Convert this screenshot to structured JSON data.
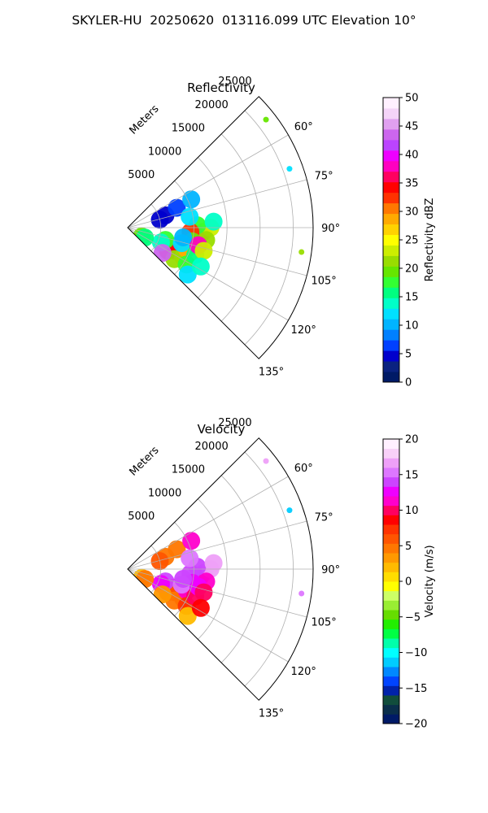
{
  "title": "SKYLER-HU  20250620  013116.099 UTC Elevation 10°",
  "chart_data": [
    {
      "type": "heatmap",
      "title": "Reflectivity",
      "projection": "polar-sector",
      "radial_label": "Meters",
      "radial_ticks": [
        5000,
        10000,
        15000,
        20000,
        25000
      ],
      "radial_tick_labels": [
        "5000",
        "10000",
        "15000",
        "20000",
        "25000"
      ],
      "rlim": [
        0,
        28000
      ],
      "azimuth_range_deg": [
        45,
        135
      ],
      "azimuth_ticks": [
        "60°",
        "75°",
        "90°",
        "105°",
        "120°",
        "135°"
      ],
      "grid": true,
      "colorbar": {
        "label": "Reflectivity dBZ",
        "range": [
          0,
          50
        ],
        "ticks": [
          "0",
          "5",
          "10",
          "15",
          "20",
          "25",
          "30",
          "35",
          "40",
          "45",
          "50"
        ],
        "levels": [
          "#001a66",
          "#0a2280",
          "#0000cc",
          "#0040ff",
          "#0080ff",
          "#00b4ff",
          "#00e0ff",
          "#00ffc8",
          "#00ff80",
          "#33ff33",
          "#66e600",
          "#99dd00",
          "#ccee00",
          "#ffff00",
          "#ffd200",
          "#ffaa00",
          "#ff7800",
          "#ff3200",
          "#ff0000",
          "#ff0060",
          "#ff00c0",
          "#ee00ff",
          "#bb44ff",
          "#cc66ee",
          "#e0a0f0",
          "#f4d4f8",
          "#fff0ff"
        ]
      },
      "cells": [
        {
          "az": 93,
          "r": 11500,
          "v": 28
        },
        {
          "az": 96,
          "r": 11000,
          "v": 38
        },
        {
          "az": 90,
          "r": 12500,
          "v": 24
        },
        {
          "az": 99,
          "r": 12000,
          "v": 22
        },
        {
          "az": 88,
          "r": 10500,
          "v": 18
        },
        {
          "az": 94,
          "r": 9500,
          "v": 32
        },
        {
          "az": 102,
          "r": 10000,
          "v": 20
        },
        {
          "az": 86,
          "r": 13000,
          "v": 14
        },
        {
          "az": 112,
          "r": 7500,
          "v": 30
        },
        {
          "az": 116,
          "r": 8000,
          "v": 38
        },
        {
          "az": 120,
          "r": 7000,
          "v": 34
        },
        {
          "az": 118,
          "r": 9500,
          "v": 26
        },
        {
          "az": 124,
          "r": 8500,
          "v": 22
        },
        {
          "az": 110,
          "r": 9500,
          "v": 28
        },
        {
          "az": 108,
          "r": 6000,
          "v": 18
        },
        {
          "az": 114,
          "r": 5500,
          "v": 14
        },
        {
          "az": 122,
          "r": 10500,
          "v": 18
        },
        {
          "az": 126,
          "r": 6500,
          "v": 44
        },
        {
          "az": 106,
          "r": 8500,
          "v": 12
        },
        {
          "az": 112,
          "r": 11000,
          "v": 16
        },
        {
          "az": 128,
          "r": 11500,
          "v": 12
        },
        {
          "az": 104,
          "r": 11000,
          "v": 38
        },
        {
          "az": 107,
          "r": 12000,
          "v": 24
        },
        {
          "az": 100,
          "r": 8500,
          "v": 10
        },
        {
          "az": 118,
          "r": 12500,
          "v": 14
        },
        {
          "az": 72,
          "r": 6000,
          "v": 4
        },
        {
          "az": 68,
          "r": 8000,
          "v": 6
        },
        {
          "az": 76,
          "r": 5000,
          "v": 5
        },
        {
          "az": 80,
          "r": 9500,
          "v": 12
        },
        {
          "az": 66,
          "r": 10500,
          "v": 10
        },
        {
          "az": 122,
          "r": 2500,
          "v": 20
        },
        {
          "az": 120,
          "r": 3000,
          "v": 16
        },
        {
          "az": 52,
          "r": 26500,
          "v": 20
        },
        {
          "az": 70,
          "r": 26000,
          "v": 12
        },
        {
          "az": 98,
          "r": 26500,
          "v": 22
        }
      ]
    },
    {
      "type": "heatmap",
      "title": "Velocity",
      "projection": "polar-sector",
      "radial_label": "Meters",
      "radial_ticks": [
        5000,
        10000,
        15000,
        20000,
        25000
      ],
      "radial_tick_labels": [
        "5000",
        "10000",
        "15000",
        "20000",
        "25000"
      ],
      "rlim": [
        0,
        28000
      ],
      "azimuth_range_deg": [
        45,
        135
      ],
      "azimuth_ticks": [
        "60°",
        "75°",
        "90°",
        "105°",
        "120°",
        "135°"
      ],
      "grid": true,
      "colorbar": {
        "label": "Velocity (m/s)",
        "range": [
          -20,
          20
        ],
        "ticks": [
          "−20",
          "−15",
          "−10",
          "−5",
          "0",
          "5",
          "10",
          "15",
          "20"
        ],
        "levels": [
          "#001a66",
          "#0a2e4a",
          "#114d3c",
          "#0022aa",
          "#0044ff",
          "#0088ff",
          "#00ccff",
          "#00ffff",
          "#00ffaa",
          "#00ff44",
          "#22ee00",
          "#66dd00",
          "#99ee33",
          "#ccff66",
          "#ffff00",
          "#ffdd00",
          "#ffbb00",
          "#ff9900",
          "#ff7700",
          "#ff5500",
          "#ff3300",
          "#ff0000",
          "#ff0060",
          "#ff00cc",
          "#ee00ff",
          "#cc44ff",
          "#dd77ff",
          "#eea0f8",
          "#f8d0f8",
          "#fff0ff"
        ]
      },
      "cells": [
        {
          "az": 93,
          "r": 11500,
          "v": 15
        },
        {
          "az": 96,
          "r": 11000,
          "v": 13
        },
        {
          "az": 90,
          "r": 12500,
          "v": 16
        },
        {
          "az": 99,
          "r": 12000,
          "v": 11
        },
        {
          "az": 88,
          "r": 10500,
          "v": 14
        },
        {
          "az": 94,
          "r": 9500,
          "v": 14
        },
        {
          "az": 102,
          "r": 10000,
          "v": 12
        },
        {
          "az": 86,
          "r": 13000,
          "v": 16
        },
        {
          "az": 112,
          "r": 7500,
          "v": 10
        },
        {
          "az": 116,
          "r": 8000,
          "v": 8
        },
        {
          "az": 120,
          "r": 7000,
          "v": 6
        },
        {
          "az": 118,
          "r": 9500,
          "v": 9
        },
        {
          "az": 124,
          "r": 8500,
          "v": 4
        },
        {
          "az": 110,
          "r": 9500,
          "v": 11
        },
        {
          "az": 108,
          "r": 6000,
          "v": 14
        },
        {
          "az": 114,
          "r": 5500,
          "v": 13
        },
        {
          "az": 122,
          "r": 10500,
          "v": 7
        },
        {
          "az": 126,
          "r": 6500,
          "v": 3
        },
        {
          "az": 106,
          "r": 8500,
          "v": 15
        },
        {
          "az": 112,
          "r": 11000,
          "v": 10
        },
        {
          "az": 128,
          "r": 11500,
          "v": 2
        },
        {
          "az": 104,
          "r": 11000,
          "v": 12
        },
        {
          "az": 107,
          "r": 12000,
          "v": 10
        },
        {
          "az": 100,
          "r": 8500,
          "v": 14
        },
        {
          "az": 118,
          "r": 12500,
          "v": 9
        },
        {
          "az": 72,
          "r": 6000,
          "v": 5
        },
        {
          "az": 68,
          "r": 8000,
          "v": 4
        },
        {
          "az": 76,
          "r": 5000,
          "v": 6
        },
        {
          "az": 80,
          "r": 9500,
          "v": 15
        },
        {
          "az": 66,
          "r": 10500,
          "v": 11
        },
        {
          "az": 122,
          "r": 2500,
          "v": 2
        },
        {
          "az": 120,
          "r": 3000,
          "v": 4
        },
        {
          "az": 52,
          "r": 26500,
          "v": 16
        },
        {
          "az": 70,
          "r": 26000,
          "v": -12
        },
        {
          "az": 98,
          "r": 26500,
          "v": 15
        }
      ]
    }
  ]
}
